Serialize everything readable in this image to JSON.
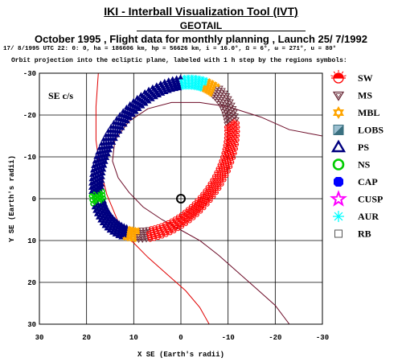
{
  "header": {
    "tool_title": "IKI - Interball Visualization Tool (IVT)",
    "spacecraft": "GEOTAIL",
    "plan_line": "October  1995 ,  Flight data for monthly planning ,   Launch 25/ 7/1992",
    "orbit_params": "17/ 8/1995 UTC 22: 0: 0, ha = 186606 km, hp = 56626 km, i = 16.0°, Ω =   6°, ω = 271°, u =  80°",
    "projection_note": "Orbit projection into the ecliptic plane, labeled with 1 h step by the regions symbols:"
  },
  "colors": {
    "SW": "#ff0000",
    "MS": "#6b2c3a",
    "MBL": "#ffa500",
    "LOBS": "#3a7080",
    "PS": "#000080",
    "NS": "#00cc00",
    "CAP": "#0000ff",
    "CUSP": "#ff00ff",
    "AUR": "#00ffff",
    "RB": "#888888",
    "boundary_curve": "#6b0a26",
    "bowshock_curve": "#e00000"
  },
  "legend": [
    {
      "key": "SW",
      "label": "SW",
      "icon": "sun-half-icon"
    },
    {
      "key": "MS",
      "label": "MS",
      "icon": "triangle-down-icon"
    },
    {
      "key": "MBL",
      "label": "MBL",
      "icon": "star-of-david-icon"
    },
    {
      "key": "LOBS",
      "label": "LOBS",
      "icon": "split-square-icon"
    },
    {
      "key": "PS",
      "label": "PS",
      "icon": "triangle-up-icon"
    },
    {
      "key": "NS",
      "label": "NS",
      "icon": "ring-icon"
    },
    {
      "key": "CAP",
      "label": "CAP",
      "icon": "octagon-icon"
    },
    {
      "key": "CUSP",
      "label": "CUSP",
      "icon": "star-icon"
    },
    {
      "key": "AUR",
      "label": "AUR",
      "icon": "asterisk-icon"
    },
    {
      "key": "RB",
      "label": "RB",
      "icon": "square-icon"
    }
  ],
  "chart_data": {
    "type": "scatter",
    "panel_label": "SE c/s",
    "xlabel": "X SE (Earth's radii)",
    "ylabel": "Y SE (Earth's radii)",
    "xlim": [
      30,
      -30
    ],
    "ylim": [
      30,
      -30
    ],
    "x_reversed": true,
    "y_reversed": true,
    "x_ticks": [
      30,
      20,
      10,
      0,
      -10,
      -20,
      -30
    ],
    "y_ticks": [
      -30,
      -20,
      -10,
      0,
      10,
      20,
      30
    ],
    "grid": true,
    "earth": [
      0,
      0
    ],
    "orbit_ellipse": {
      "center_x": 3.5,
      "center_y": -9.6,
      "semi_major": 19.6,
      "semi_minor": 12.5,
      "tilt_deg": 62
    },
    "orbit_passes": 6,
    "pass_spacing": 0.55,
    "series": [
      {
        "region": "SW",
        "param_ranges": [
          [
            0.45,
            2.4
          ]
        ]
      },
      {
        "region": "MS",
        "param_ranges": [
          [
            2.4,
            3.0
          ],
          [
            0.3,
            0.45
          ]
        ]
      },
      {
        "region": "MBL",
        "param_ranges": [
          [
            3.0,
            3.2
          ],
          [
            0.1,
            0.3
          ]
        ]
      },
      {
        "region": "AUR",
        "param_ranges": [
          [
            3.2,
            3.6
          ]
        ]
      },
      {
        "region": "PS",
        "param_ranges": [
          [
            3.6,
            5.5
          ],
          [
            5.65,
            6.283
          ],
          [
            0.0,
            0.1
          ]
        ]
      },
      {
        "region": "NS",
        "param_ranges": [
          [
            4.1,
            4.9
          ],
          [
            5.5,
            5.65
          ]
        ]
      }
    ],
    "magnetopause_curve": [
      [
        -23,
        30
      ],
      [
        -20,
        25.5
      ],
      [
        -16,
        21.5
      ],
      [
        -12,
        17.5
      ],
      [
        -8,
        13.5
      ],
      [
        -4,
        10
      ],
      [
        0,
        7.5
      ],
      [
        4,
        5
      ],
      [
        8,
        2
      ],
      [
        11,
        -1.5
      ],
      [
        13.3,
        -5
      ],
      [
        14.5,
        -9
      ],
      [
        14,
        -14
      ],
      [
        11,
        -18.5
      ],
      [
        7,
        -21.5
      ],
      [
        2,
        -23
      ],
      [
        -4,
        -23
      ],
      [
        -10,
        -22
      ],
      [
        -17,
        -19.5
      ],
      [
        -23,
        -16.5
      ],
      [
        -30,
        -15
      ]
    ],
    "bowshock_curve": [
      [
        -6,
        30
      ],
      [
        -4,
        26
      ],
      [
        -1,
        22
      ],
      [
        3,
        18
      ],
      [
        7,
        14
      ],
      [
        10.5,
        10
      ],
      [
        13.5,
        5
      ],
      [
        15.7,
        -1
      ],
      [
        17.3,
        -8
      ],
      [
        18,
        -14
      ],
      [
        18,
        -22
      ],
      [
        17.5,
        -30
      ]
    ]
  }
}
